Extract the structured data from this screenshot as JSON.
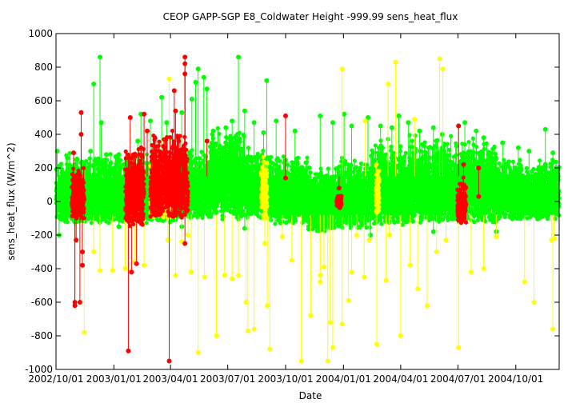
{
  "chart_data": {
    "type": "scatter",
    "title": "CEOP GAPP-SGP E8_Coldwater Height -999.99 sens_heat_flux",
    "xlabel": "Date",
    "ylabel": "sens_heat_flux (W/m^2)",
    "ylim": [
      -1000,
      1000
    ],
    "y_ticks": [
      -1000,
      -800,
      -600,
      -400,
      -200,
      0,
      200,
      400,
      600,
      800,
      1000
    ],
    "y_tick_labels": [
      "-1000",
      "-800",
      "-600",
      "-400",
      "-200",
      "0",
      "200",
      "400",
      "600",
      "800",
      "1000"
    ],
    "x_range_days": [
      0,
      800
    ],
    "x_ticks": [
      {
        "day": 0,
        "label": "2002/10/01"
      },
      {
        "day": 92,
        "label": "2003/01/01"
      },
      {
        "day": 182,
        "label": "2003/04/01"
      },
      {
        "day": 273,
        "label": "2003/07/01"
      },
      {
        "day": 365,
        "label": "2003/10/01"
      },
      {
        "day": 457,
        "label": "2004/01/01"
      },
      {
        "day": 548,
        "label": "2004/04/01"
      },
      {
        "day": 639,
        "label": "2004/07/01"
      },
      {
        "day": 731,
        "label": "2004/10/01"
      }
    ],
    "grid": false,
    "series_colors": {
      "good": "#00ff00",
      "questionable": "#ffff00",
      "bad": "#ff0000"
    },
    "series": [
      {
        "name": "good",
        "color": "#00ff00",
        "points": [
          [
            2,
            300
          ],
          [
            5,
            -200
          ],
          [
            18,
            260
          ],
          [
            30,
            220
          ],
          [
            45,
            230
          ],
          [
            55,
            300
          ],
          [
            60,
            700
          ],
          [
            70,
            860
          ],
          [
            72,
            470
          ],
          [
            80,
            280
          ],
          [
            100,
            280
          ],
          [
            130,
            360
          ],
          [
            135,
            520
          ],
          [
            150,
            480
          ],
          [
            168,
            620
          ],
          [
            176,
            470
          ],
          [
            182,
            380
          ],
          [
            200,
            530
          ],
          [
            216,
            610
          ],
          [
            222,
            710
          ],
          [
            226,
            790
          ],
          [
            235,
            740
          ],
          [
            240,
            670
          ],
          [
            250,
            420
          ],
          [
            270,
            440
          ],
          [
            280,
            480
          ],
          [
            290,
            860
          ],
          [
            300,
            540
          ],
          [
            315,
            470
          ],
          [
            330,
            410
          ],
          [
            335,
            720
          ],
          [
            350,
            480
          ],
          [
            380,
            420
          ],
          [
            420,
            510
          ],
          [
            440,
            470
          ],
          [
            458,
            520
          ],
          [
            470,
            450
          ],
          [
            496,
            500
          ],
          [
            516,
            450
          ],
          [
            534,
            440
          ],
          [
            545,
            510
          ],
          [
            560,
            470
          ],
          [
            578,
            420
          ],
          [
            600,
            440
          ],
          [
            614,
            400
          ],
          [
            640,
            450
          ],
          [
            650,
            470
          ],
          [
            668,
            420
          ],
          [
            680,
            380
          ],
          [
            710,
            350
          ],
          [
            735,
            320
          ],
          [
            752,
            300
          ],
          [
            778,
            430
          ],
          [
            790,
            290
          ],
          [
            420,
            -150
          ],
          [
            500,
            -200
          ],
          [
            600,
            -180
          ],
          [
            700,
            -180
          ],
          [
            200,
            -150
          ],
          [
            100,
            -150
          ],
          [
            300,
            -160
          ]
        ],
        "bands": [
          {
            "from": 0,
            "to": 200,
            "lo": -130,
            "hi": 300
          },
          {
            "from": 200,
            "to": 240,
            "lo": -100,
            "hi": 320
          },
          {
            "from": 240,
            "to": 300,
            "lo": -110,
            "hi": 460
          },
          {
            "from": 300,
            "to": 340,
            "lo": -100,
            "hi": 330
          },
          {
            "from": 340,
            "to": 400,
            "lo": -140,
            "hi": 300
          },
          {
            "from": 400,
            "to": 440,
            "lo": -180,
            "hi": 240
          },
          {
            "from": 440,
            "to": 500,
            "lo": -160,
            "hi": 270
          },
          {
            "from": 500,
            "to": 560,
            "lo": -150,
            "hi": 390
          },
          {
            "from": 560,
            "to": 640,
            "lo": -130,
            "hi": 400
          },
          {
            "from": 640,
            "to": 700,
            "lo": -130,
            "hi": 380
          },
          {
            "from": 700,
            "to": 800,
            "lo": -110,
            "hi": 270
          }
        ]
      },
      {
        "name": "questionable",
        "color": "#ffff00",
        "points": [
          [
            32,
            -230
          ],
          [
            45,
            -780
          ],
          [
            60,
            -300
          ],
          [
            70,
            -410
          ],
          [
            90,
            -410
          ],
          [
            110,
            -400
          ],
          [
            125,
            -360
          ],
          [
            140,
            -380
          ],
          [
            178,
            -230
          ],
          [
            190,
            -440
          ],
          [
            200,
            -240
          ],
          [
            210,
            -200
          ],
          [
            215,
            -420
          ],
          [
            226,
            -900
          ],
          [
            236,
            -450
          ],
          [
            255,
            -800
          ],
          [
            268,
            -440
          ],
          [
            280,
            -460
          ],
          [
            290,
            -440
          ],
          [
            302,
            -600
          ],
          [
            305,
            -770
          ],
          [
            315,
            -760
          ],
          [
            332,
            -250
          ],
          [
            336,
            -620
          ],
          [
            340,
            -880
          ],
          [
            360,
            -210
          ],
          [
            375,
            -350
          ],
          [
            390,
            -950
          ],
          [
            405,
            -680
          ],
          [
            420,
            -440
          ],
          [
            420,
            -480
          ],
          [
            426,
            -390
          ],
          [
            432,
            -950
          ],
          [
            440,
            -870
          ],
          [
            455,
            -730
          ],
          [
            465,
            -590
          ],
          [
            470,
            -420
          ],
          [
            478,
            -200
          ],
          [
            490,
            -450
          ],
          [
            498,
            -230
          ],
          [
            510,
            -850
          ],
          [
            525,
            -470
          ],
          [
            530,
            -200
          ],
          [
            548,
            -800
          ],
          [
            563,
            -380
          ],
          [
            575,
            -520
          ],
          [
            590,
            -620
          ],
          [
            605,
            -300
          ],
          [
            620,
            -230
          ],
          [
            640,
            -870
          ],
          [
            660,
            -420
          ],
          [
            680,
            -400
          ],
          [
            700,
            -210
          ],
          [
            745,
            -480
          ],
          [
            760,
            -600
          ],
          [
            790,
            -760
          ],
          [
            792,
            -220
          ],
          [
            788,
            -230
          ],
          [
            610,
            850
          ],
          [
            615,
            790
          ],
          [
            180,
            730
          ],
          [
            455,
            790
          ],
          [
            436,
            -720
          ],
          [
            528,
            700
          ],
          [
            540,
            830
          ],
          [
            570,
            490
          ],
          [
            492,
            480
          ]
        ],
        "bands": [
          {
            "from": 150,
            "to": 182,
            "lo": -100,
            "hi": 300
          },
          {
            "from": 326,
            "to": 336,
            "lo": -110,
            "hi": 300
          },
          {
            "from": 508,
            "to": 514,
            "lo": -80,
            "hi": 280
          }
        ]
      },
      {
        "name": "bad",
        "color": "#ff0000",
        "points": [
          [
            28,
            290
          ],
          [
            30,
            -600
          ],
          [
            30,
            -620
          ],
          [
            32,
            -230
          ],
          [
            35,
            -80
          ],
          [
            38,
            -600
          ],
          [
            40,
            530
          ],
          [
            40,
            400
          ],
          [
            42,
            -380
          ],
          [
            42,
            -300
          ],
          [
            115,
            -890
          ],
          [
            118,
            500
          ],
          [
            120,
            260
          ],
          [
            120,
            -420
          ],
          [
            128,
            -370
          ],
          [
            140,
            520
          ],
          [
            145,
            420
          ],
          [
            160,
            300
          ],
          [
            180,
            -950
          ],
          [
            188,
            660
          ],
          [
            190,
            540
          ],
          [
            195,
            360
          ],
          [
            205,
            860
          ],
          [
            205,
            820
          ],
          [
            205,
            760
          ],
          [
            205,
            -250
          ],
          [
            240,
            360
          ],
          [
            365,
            510
          ],
          [
            365,
            140
          ],
          [
            450,
            80
          ],
          [
            640,
            450
          ],
          [
            648,
            220
          ],
          [
            672,
            200
          ],
          [
            672,
            30
          ],
          [
            640,
            -110
          ]
        ],
        "bands": [
          {
            "from": 25,
            "to": 45,
            "lo": -100,
            "hi": 210
          },
          {
            "from": 110,
            "to": 130,
            "lo": -150,
            "hi": 320
          },
          {
            "from": 130,
            "to": 140,
            "lo": -150,
            "hi": 360
          },
          {
            "from": 150,
            "to": 210,
            "lo": -100,
            "hi": 440
          },
          {
            "from": 446,
            "to": 454,
            "lo": -40,
            "hi": 40
          },
          {
            "from": 638,
            "to": 652,
            "lo": -130,
            "hi": 150
          }
        ]
      }
    ]
  }
}
